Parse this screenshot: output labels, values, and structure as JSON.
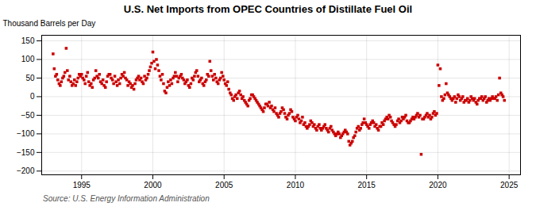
{
  "chart_data": {
    "type": "scatter",
    "title": "U.S. Net Imports from OPEC Countries of Distillate Fuel Oil",
    "ylabel": "Thousand Barrels per Day",
    "annotations": [
      "Source: U.S. Energy Information Administration"
    ],
    "color": "#cc0000",
    "marker": "square",
    "grid": true,
    "xlim": [
      1992.2,
      2025.8
    ],
    "ylim": [
      -210,
      165
    ],
    "xticks": [
      1995,
      2000,
      2005,
      2010,
      2015,
      2020,
      2025
    ],
    "yticks": [
      -200,
      -150,
      -100,
      -50,
      0,
      50,
      100,
      150
    ],
    "x": [
      1993.0,
      1993.08,
      1993.17,
      1993.25,
      1993.33,
      1993.42,
      1993.5,
      1993.58,
      1993.67,
      1993.75,
      1993.83,
      1993.92,
      1994.0,
      1994.08,
      1994.17,
      1994.25,
      1994.33,
      1994.42,
      1994.5,
      1994.58,
      1994.67,
      1994.75,
      1994.83,
      1994.92,
      1995.0,
      1995.08,
      1995.17,
      1995.25,
      1995.33,
      1995.42,
      1995.5,
      1995.58,
      1995.67,
      1995.75,
      1995.83,
      1995.92,
      1996.0,
      1996.08,
      1996.17,
      1996.25,
      1996.33,
      1996.42,
      1996.5,
      1996.58,
      1996.67,
      1996.75,
      1996.83,
      1996.92,
      1997.0,
      1997.08,
      1997.17,
      1997.25,
      1997.33,
      1997.42,
      1997.5,
      1997.58,
      1997.67,
      1997.75,
      1997.83,
      1997.92,
      1998.0,
      1998.08,
      1998.17,
      1998.25,
      1998.33,
      1998.42,
      1998.5,
      1998.58,
      1998.67,
      1998.75,
      1998.83,
      1998.92,
      1999.0,
      1999.08,
      1999.17,
      1999.25,
      1999.33,
      1999.42,
      1999.5,
      1999.58,
      1999.67,
      1999.75,
      1999.83,
      1999.92,
      2000.0,
      2000.08,
      2000.17,
      2000.25,
      2000.33,
      2000.42,
      2000.5,
      2000.58,
      2000.67,
      2000.75,
      2000.83,
      2000.92,
      2001.0,
      2001.08,
      2001.17,
      2001.25,
      2001.33,
      2001.42,
      2001.5,
      2001.58,
      2001.67,
      2001.75,
      2001.83,
      2001.92,
      2002.0,
      2002.08,
      2002.17,
      2002.25,
      2002.33,
      2002.42,
      2002.5,
      2002.58,
      2002.67,
      2002.75,
      2002.83,
      2002.92,
      2003.0,
      2003.08,
      2003.17,
      2003.25,
      2003.33,
      2003.42,
      2003.5,
      2003.58,
      2003.67,
      2003.75,
      2003.83,
      2003.92,
      2004.0,
      2004.08,
      2004.17,
      2004.25,
      2004.33,
      2004.42,
      2004.5,
      2004.58,
      2004.67,
      2004.75,
      2004.83,
      2004.92,
      2005.0,
      2005.08,
      2005.17,
      2005.25,
      2005.33,
      2005.42,
      2005.5,
      2005.58,
      2005.67,
      2005.75,
      2005.83,
      2005.92,
      2006.0,
      2006.08,
      2006.17,
      2006.25,
      2006.33,
      2006.42,
      2006.5,
      2006.58,
      2006.67,
      2006.75,
      2006.83,
      2006.92,
      2007.0,
      2007.08,
      2007.17,
      2007.25,
      2007.33,
      2007.42,
      2007.5,
      2007.58,
      2007.67,
      2007.75,
      2007.83,
      2007.92,
      2008.0,
      2008.08,
      2008.17,
      2008.25,
      2008.33,
      2008.42,
      2008.5,
      2008.58,
      2008.67,
      2008.75,
      2008.83,
      2008.92,
      2009.0,
      2009.08,
      2009.17,
      2009.25,
      2009.33,
      2009.42,
      2009.5,
      2009.58,
      2009.67,
      2009.75,
      2009.83,
      2009.92,
      2010.0,
      2010.08,
      2010.17,
      2010.25,
      2010.33,
      2010.42,
      2010.5,
      2010.58,
      2010.67,
      2010.75,
      2010.83,
      2010.92,
      2011.0,
      2011.08,
      2011.17,
      2011.25,
      2011.33,
      2011.42,
      2011.5,
      2011.58,
      2011.67,
      2011.75,
      2011.83,
      2011.92,
      2012.0,
      2012.08,
      2012.17,
      2012.25,
      2012.33,
      2012.42,
      2012.5,
      2012.58,
      2012.67,
      2012.75,
      2012.83,
      2012.92,
      2013.0,
      2013.08,
      2013.17,
      2013.25,
      2013.33,
      2013.42,
      2013.5,
      2013.58,
      2013.67,
      2013.75,
      2013.83,
      2013.92,
      2014.0,
      2014.08,
      2014.17,
      2014.25,
      2014.33,
      2014.42,
      2014.5,
      2014.58,
      2014.67,
      2014.75,
      2014.83,
      2014.92,
      2015.0,
      2015.08,
      2015.17,
      2015.25,
      2015.33,
      2015.42,
      2015.5,
      2015.58,
      2015.67,
      2015.75,
      2015.83,
      2015.92,
      2016.0,
      2016.08,
      2016.17,
      2016.25,
      2016.33,
      2016.42,
      2016.5,
      2016.58,
      2016.67,
      2016.75,
      2016.83,
      2016.92,
      2017.0,
      2017.08,
      2017.17,
      2017.25,
      2017.33,
      2017.42,
      2017.5,
      2017.58,
      2017.67,
      2017.75,
      2017.83,
      2017.92,
      2018.0,
      2018.08,
      2018.17,
      2018.25,
      2018.33,
      2018.42,
      2018.5,
      2018.58,
      2018.67,
      2018.75,
      2018.83,
      2018.92,
      2019.0,
      2019.08,
      2019.17,
      2019.25,
      2019.33,
      2019.42,
      2019.5,
      2019.58,
      2019.67,
      2019.75,
      2019.83,
      2019.92,
      2020.0,
      2020.08,
      2020.17,
      2020.25,
      2020.33,
      2020.42,
      2020.5,
      2020.58,
      2020.67,
      2020.75,
      2020.83,
      2020.92,
      2021.0,
      2021.08,
      2021.17,
      2021.25,
      2021.33,
      2021.42,
      2021.5,
      2021.58,
      2021.67,
      2021.75,
      2021.83,
      2021.92,
      2022.0,
      2022.08,
      2022.17,
      2022.25,
      2022.33,
      2022.42,
      2022.5,
      2022.58,
      2022.67,
      2022.75,
      2022.83,
      2022.92,
      2023.0,
      2023.08,
      2023.17,
      2023.25,
      2023.33,
      2023.42,
      2023.5,
      2023.58,
      2023.67,
      2023.75,
      2023.83,
      2023.92,
      2024.0,
      2024.08,
      2024.17,
      2024.25,
      2024.33,
      2024.42,
      2024.5,
      2024.58,
      2024.67
    ],
    "values": [
      115,
      75,
      55,
      60,
      45,
      35,
      30,
      40,
      50,
      55,
      65,
      130,
      70,
      45,
      55,
      40,
      30,
      35,
      45,
      30,
      40,
      50,
      60,
      55,
      60,
      50,
      45,
      35,
      55,
      65,
      40,
      30,
      35,
      25,
      45,
      50,
      70,
      55,
      50,
      60,
      40,
      35,
      45,
      30,
      25,
      40,
      55,
      60,
      60,
      50,
      45,
      35,
      55,
      40,
      30,
      45,
      35,
      50,
      60,
      55,
      65,
      50,
      45,
      30,
      40,
      35,
      25,
      30,
      20,
      35,
      45,
      50,
      55,
      45,
      50,
      40,
      35,
      55,
      45,
      50,
      60,
      70,
      80,
      90,
      120,
      95,
      75,
      100,
      85,
      70,
      55,
      45,
      60,
      35,
      15,
      10,
      25,
      40,
      30,
      45,
      35,
      50,
      55,
      65,
      55,
      40,
      50,
      55,
      60,
      50,
      45,
      35,
      40,
      45,
      30,
      25,
      35,
      50,
      45,
      55,
      65,
      70,
      55,
      40,
      45,
      50,
      35,
      30,
      40,
      45,
      60,
      55,
      95,
      70,
      55,
      45,
      60,
      50,
      40,
      35,
      45,
      50,
      65,
      55,
      45,
      35,
      30,
      40,
      20,
      10,
      5,
      -5,
      -10,
      0,
      5,
      -5,
      10,
      15,
      5,
      -5,
      0,
      -10,
      -15,
      -20,
      -25,
      -10,
      -5,
      5,
      5,
      0,
      -5,
      -10,
      -15,
      -20,
      -25,
      -30,
      -35,
      -40,
      -30,
      -20,
      -20,
      -25,
      -15,
      -30,
      -25,
      -35,
      -40,
      -30,
      -45,
      -50,
      -55,
      -45,
      -40,
      -30,
      -35,
      -45,
      -55,
      -60,
      -50,
      -45,
      -35,
      -40,
      -55,
      -60,
      -65,
      -55,
      -50,
      -60,
      -70,
      -65,
      -55,
      -75,
      -70,
      -80,
      -85,
      -80,
      -75,
      -65,
      -70,
      -80,
      -75,
      -85,
      -90,
      -80,
      -75,
      -85,
      -90,
      -85,
      -80,
      -75,
      -85,
      -90,
      -95,
      -85,
      -80,
      -90,
      -95,
      -100,
      -105,
      -100,
      -95,
      -100,
      -110,
      -105,
      -100,
      -95,
      -90,
      -95,
      -100,
      -120,
      -130,
      -125,
      -120,
      -110,
      -105,
      -95,
      -85,
      -80,
      -90,
      -85,
      -75,
      -70,
      -60,
      -70,
      -75,
      -80,
      -85,
      -75,
      -70,
      -65,
      -70,
      -80,
      -75,
      -85,
      -90,
      -80,
      -80,
      -70,
      -75,
      -65,
      -60,
      -55,
      -60,
      -50,
      -55,
      -65,
      -70,
      -75,
      -80,
      -75,
      -65,
      -60,
      -70,
      -65,
      -55,
      -60,
      -55,
      -50,
      -65,
      -70,
      -70,
      -65,
      -60,
      -55,
      -60,
      -55,
      -50,
      -45,
      -55,
      -50,
      -155,
      -60,
      -60,
      -55,
      -50,
      -45,
      -55,
      -50,
      -60,
      -55,
      -45,
      -40,
      -50,
      -45,
      85,
      30,
      75,
      0,
      -10,
      -5,
      5,
      35,
      10,
      5,
      0,
      -5,
      -10,
      -5,
      0,
      -15,
      -5,
      5,
      0,
      -10,
      -5,
      0,
      -15,
      -10,
      -10,
      -5,
      -15,
      -10,
      0,
      -5,
      -10,
      -5,
      -15,
      -20,
      -10,
      -5,
      -5,
      0,
      -10,
      -5,
      0,
      -15,
      -10,
      -5,
      -10,
      -5,
      0,
      -5,
      -5,
      0,
      -10,
      5,
      50,
      10,
      5,
      0,
      -10
    ]
  }
}
